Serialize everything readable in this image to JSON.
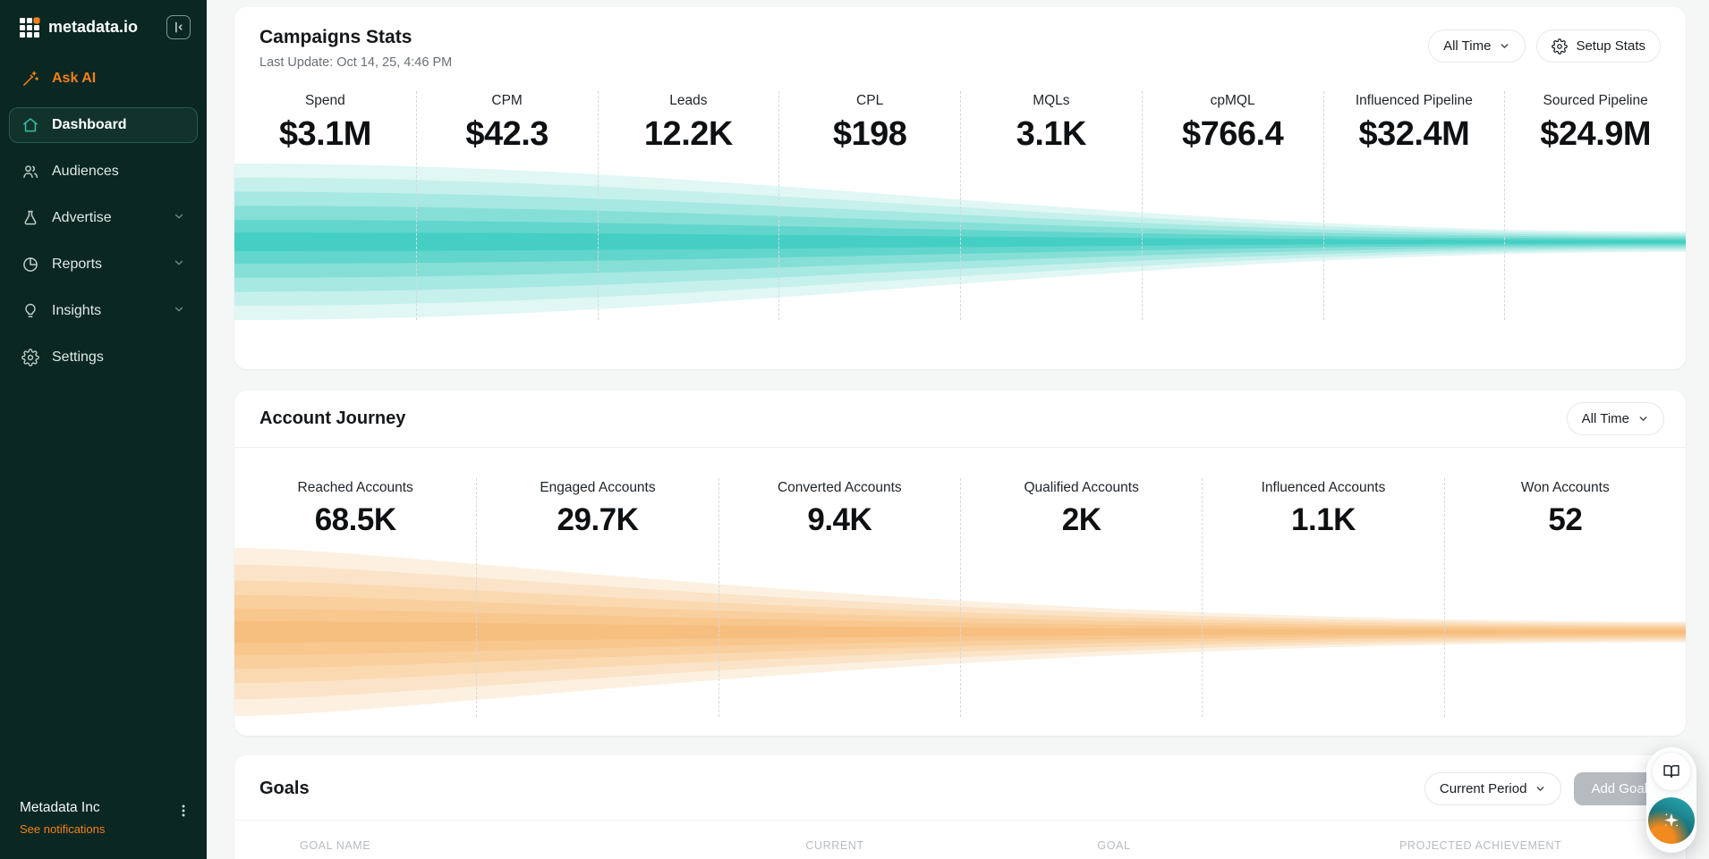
{
  "sidebar": {
    "logo_text": "metadata.io",
    "items": [
      {
        "label": "Ask AI",
        "icon": "wand-icon"
      },
      {
        "label": "Dashboard",
        "icon": "home-icon",
        "active": true
      },
      {
        "label": "Audiences",
        "icon": "users-icon"
      },
      {
        "label": "Advertise",
        "icon": "flask-icon",
        "expandable": true
      },
      {
        "label": "Reports",
        "icon": "pie-chart-icon",
        "expandable": true
      },
      {
        "label": "Insights",
        "icon": "lightbulb-icon",
        "expandable": true
      },
      {
        "label": "Settings",
        "icon": "gear-icon"
      }
    ],
    "footer": {
      "org_name": "Metadata Inc",
      "notifications_link": "See notifications"
    }
  },
  "campaigns": {
    "title": "Campaigns Stats",
    "subtitle": "Last Update: Oct 14, 25, 4:46 PM",
    "time_filter": "All Time",
    "setup_button": "Setup Stats",
    "stats": [
      {
        "label": "Spend",
        "value": "$3.1M"
      },
      {
        "label": "CPM",
        "value": "$42.3"
      },
      {
        "label": "Leads",
        "value": "12.2K"
      },
      {
        "label": "CPL",
        "value": "$198"
      },
      {
        "label": "MQLs",
        "value": "3.1K"
      },
      {
        "label": "cpMQL",
        "value": "$766.4"
      },
      {
        "label": "Influenced Pipeline",
        "value": "$32.4M"
      },
      {
        "label": "Sourced Pipeline",
        "value": "$24.9M"
      }
    ]
  },
  "journey": {
    "title": "Account Journey",
    "time_filter": "All Time",
    "stats": [
      {
        "label": "Reached Accounts",
        "value": "68.5K"
      },
      {
        "label": "Engaged Accounts",
        "value": "29.7K"
      },
      {
        "label": "Converted Accounts",
        "value": "9.4K"
      },
      {
        "label": "Qualified Accounts",
        "value": "2K"
      },
      {
        "label": "Influenced Accounts",
        "value": "1.1K"
      },
      {
        "label": "Won Accounts",
        "value": "52"
      }
    ]
  },
  "goals": {
    "title": "Goals",
    "period_filter": "Current Period",
    "add_button": "Add Goal",
    "columns": [
      "GOAL NAME",
      "CURRENT",
      "GOAL",
      "PROJECTED ACHIEVEMENT"
    ]
  },
  "chart_data": [
    {
      "type": "area",
      "name": "campaigns-funnel-stream",
      "title": "Campaigns Stats funnel",
      "orientation": "horizontal-converging",
      "stages": [
        {
          "label": "Spend",
          "value": "$3.1M"
        },
        {
          "label": "CPM",
          "value": "$42.3"
        },
        {
          "label": "Leads",
          "value": "12.2K"
        },
        {
          "label": "CPL",
          "value": "$198"
        },
        {
          "label": "MQLs",
          "value": "3.1K"
        },
        {
          "label": "cpMQL",
          "value": "$766.4"
        },
        {
          "label": "Influenced Pipeline",
          "value": "$32.4M"
        },
        {
          "label": "Sourced Pipeline",
          "value": "$24.9M"
        }
      ],
      "palette": [
        "#E0F7F4",
        "#C6F0EC",
        "#A6E8E2",
        "#86DFD7",
        "#62D6CC",
        "#45CFC4"
      ],
      "layers_left": [
        1.0,
        0.82,
        0.64,
        0.46,
        0.28,
        0.12
      ],
      "layers_right": [
        0.13,
        0.108,
        0.086,
        0.064,
        0.042,
        0.022
      ],
      "curve": [
        0.35,
        0.6
      ],
      "grid": "dashed-column-dividers"
    },
    {
      "type": "area",
      "name": "account-journey-funnel-stream",
      "title": "Account Journey funnel",
      "orientation": "horizontal-converging",
      "stages": [
        {
          "label": "Reached Accounts",
          "value": 68500
        },
        {
          "label": "Engaged Accounts",
          "value": 29700
        },
        {
          "label": "Converted Accounts",
          "value": 9400
        },
        {
          "label": "Qualified Accounts",
          "value": 2000
        },
        {
          "label": "Influenced Accounts",
          "value": 1100
        },
        {
          "label": "Won Accounts",
          "value": 52
        }
      ],
      "palette": [
        "#FCF0E0",
        "#FBE3C7",
        "#FAD9B1",
        "#F9CF9E",
        "#F8C78E",
        "#F7BF7F"
      ],
      "layers_left": [
        1.0,
        0.8,
        0.61,
        0.44,
        0.28,
        0.13
      ],
      "layers_right": [
        0.125,
        0.104,
        0.084,
        0.064,
        0.044,
        0.024
      ],
      "curve": [
        0.12,
        0.45
      ],
      "grid": "dashed-column-dividers"
    }
  ],
  "colors": {
    "sidebar_bg": "#0A2722",
    "accent_orange": "#F2801A",
    "accent_teal": "#35BFA9",
    "funnel_teal": "#45CFC4",
    "funnel_orange": "#F8C78E",
    "card_bg": "#FFFFFF",
    "page_bg": "#F5F6F6",
    "muted_header": "#B7BCC1"
  }
}
